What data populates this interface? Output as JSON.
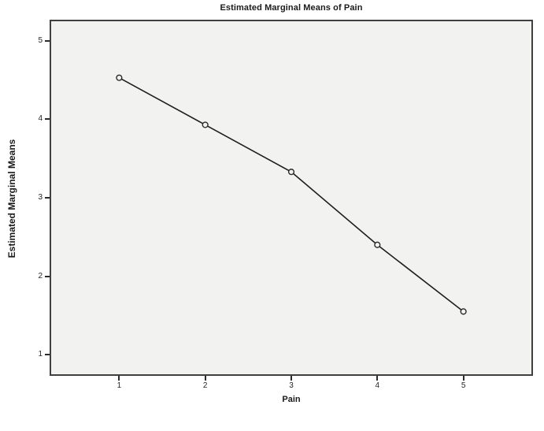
{
  "chart_data": {
    "type": "line",
    "title": "Estimated Marginal Means of Pain",
    "xlabel": "Pain",
    "ylabel": "Estimated Marginal Means",
    "x": [
      1,
      2,
      3,
      4,
      5
    ],
    "series": [
      {
        "name": "Estimated Marginal Means",
        "values": [
          4.53,
          3.93,
          3.33,
          2.4,
          1.55
        ]
      }
    ],
    "x_ticks": [
      "1",
      "2",
      "3",
      "4",
      "5"
    ],
    "y_ticks": [
      "1",
      "2",
      "3",
      "4",
      "5"
    ],
    "x_tick_values": [
      1,
      2,
      3,
      4,
      5
    ],
    "y_tick_values": [
      1,
      2,
      3,
      4,
      5
    ],
    "xlim": [
      0.21,
      5.79
    ],
    "ylim": [
      0.75,
      5.25
    ],
    "grid": false,
    "legend": false,
    "marker": "open-circle",
    "colors": {
      "line": "#1f1f1f",
      "marker_stroke": "#2b2b2b",
      "marker_fill": "#f2f2f0",
      "plot_background": "#f2f2f0",
      "frame": "#404040",
      "page_background": "#ffffff",
      "text": "#1a1a1a"
    }
  }
}
